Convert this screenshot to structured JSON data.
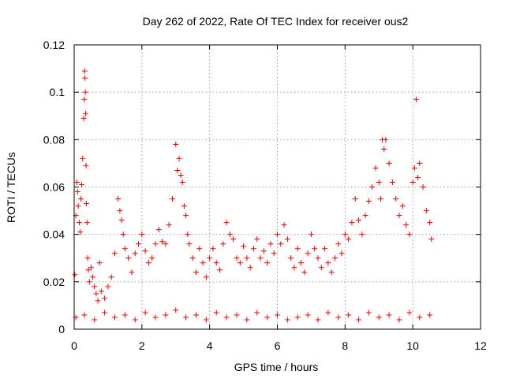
{
  "chart_data": {
    "type": "scatter",
    "title": "Day 262 of 2022, Rate Of TEC Index for receiver ous2",
    "xlabel": "GPS time / hours",
    "ylabel": "ROTI / TECUs",
    "xlim": [
      0,
      12
    ],
    "ylim": [
      0,
      0.12
    ],
    "xticks": [
      0,
      2,
      4,
      6,
      8,
      10,
      12
    ],
    "xtick_labels": [
      "0",
      "2",
      "4",
      "6",
      "8",
      "10",
      "12"
    ],
    "yticks": [
      0,
      0.02,
      0.04,
      0.06,
      0.08,
      0.1,
      0.12
    ],
    "ytick_labels": [
      "0",
      "0.02",
      "0.04",
      "0.06",
      "0.08",
      "0.1",
      "0.12"
    ],
    "grid": true,
    "marker": "+",
    "color": "#ff0000",
    "series": [
      {
        "x": [
          0.02,
          0.05,
          0.08,
          0.1,
          0.12,
          0.15,
          0.18,
          0.2,
          0.22,
          0.25,
          0.28,
          0.3,
          0.31,
          0.32,
          0.33,
          0.34,
          0.35,
          0.36,
          0.38,
          0.4,
          0.42,
          0.45,
          0.5,
          0.55,
          0.6,
          0.65,
          0.7,
          0.75,
          0.8,
          0.9,
          1.0,
          1.1,
          1.2,
          1.3,
          1.35,
          1.4,
          1.45,
          1.5,
          1.6,
          1.7,
          1.8,
          1.9,
          2.0,
          2.1,
          2.2,
          2.3,
          2.4,
          2.5,
          2.6,
          2.7,
          2.8,
          2.9,
          3.0,
          3.05,
          3.1,
          3.15,
          3.2,
          3.25,
          3.3,
          3.35,
          3.4,
          3.5,
          3.6,
          3.7,
          3.8,
          3.9,
          4.0,
          4.1,
          4.2,
          4.3,
          4.4,
          4.5,
          4.6,
          4.7,
          4.8,
          4.9,
          5.0,
          5.1,
          5.2,
          5.3,
          5.4,
          5.5,
          5.6,
          5.7,
          5.8,
          5.9,
          6.0,
          6.1,
          6.2,
          6.3,
          6.4,
          6.5,
          6.6,
          6.7,
          6.8,
          6.9,
          7.0,
          7.1,
          7.2,
          7.3,
          7.4,
          7.5,
          7.6,
          7.7,
          7.8,
          7.9,
          8.0,
          8.1,
          8.2,
          8.3,
          8.4,
          8.5,
          8.6,
          8.7,
          8.8,
          8.9,
          9.0,
          9.05,
          9.1,
          9.15,
          9.2,
          9.3,
          9.4,
          9.5,
          9.6,
          9.7,
          9.8,
          9.9,
          10.0,
          10.05,
          10.1,
          10.15,
          10.2,
          10.3,
          10.4,
          10.5,
          10.55
        ],
        "y": [
          0.023,
          0.048,
          0.062,
          0.058,
          0.052,
          0.045,
          0.041,
          0.055,
          0.061,
          0.072,
          0.089,
          0.097,
          0.109,
          0.106,
          0.1,
          0.091,
          0.069,
          0.053,
          0.045,
          0.03,
          0.025,
          0.02,
          0.026,
          0.022,
          0.018,
          0.015,
          0.012,
          0.028,
          0.016,
          0.013,
          0.018,
          0.022,
          0.032,
          0.055,
          0.05,
          0.046,
          0.04,
          0.034,
          0.03,
          0.024,
          0.032,
          0.036,
          0.04,
          0.033,
          0.028,
          0.03,
          0.036,
          0.042,
          0.037,
          0.036,
          0.044,
          0.055,
          0.078,
          0.067,
          0.072,
          0.065,
          0.062,
          0.052,
          0.048,
          0.04,
          0.036,
          0.03,
          0.024,
          0.034,
          0.028,
          0.022,
          0.03,
          0.034,
          0.028,
          0.025,
          0.036,
          0.045,
          0.04,
          0.038,
          0.03,
          0.028,
          0.035,
          0.03,
          0.026,
          0.034,
          0.038,
          0.03,
          0.033,
          0.028,
          0.036,
          0.032,
          0.04,
          0.036,
          0.044,
          0.038,
          0.03,
          0.026,
          0.034,
          0.028,
          0.024,
          0.032,
          0.04,
          0.034,
          0.03,
          0.026,
          0.034,
          0.028,
          0.024,
          0.03,
          0.036,
          0.032,
          0.04,
          0.038,
          0.045,
          0.055,
          0.046,
          0.04,
          0.048,
          0.054,
          0.06,
          0.068,
          0.062,
          0.055,
          0.08,
          0.076,
          0.08,
          0.07,
          0.062,
          0.055,
          0.048,
          0.052,
          0.044,
          0.04,
          0.062,
          0.068,
          0.097,
          0.064,
          0.07,
          0.06,
          0.05,
          0.045,
          0.038
        ]
      },
      {
        "name": "",
        "x": [
          0.05,
          0.3,
          0.6,
          0.9,
          1.2,
          1.5,
          1.8,
          2.1,
          2.4,
          2.7,
          3.0,
          3.3,
          3.6,
          3.9,
          4.2,
          4.5,
          4.8,
          5.1,
          5.4,
          5.7,
          6.0,
          6.3,
          6.6,
          6.9,
          7.2,
          7.5,
          7.8,
          8.1,
          8.4,
          8.7,
          9.0,
          9.3,
          9.6,
          9.9,
          10.2,
          10.5
        ],
        "y": [
          0.005,
          0.006,
          0.004,
          0.007,
          0.005,
          0.006,
          0.004,
          0.007,
          0.005,
          0.006,
          0.008,
          0.005,
          0.006,
          0.004,
          0.007,
          0.005,
          0.006,
          0.004,
          0.007,
          0.005,
          0.006,
          0.004,
          0.005,
          0.006,
          0.004,
          0.007,
          0.005,
          0.006,
          0.004,
          0.007,
          0.005,
          0.006,
          0.004,
          0.007,
          0.005,
          0.006
        ]
      }
    ]
  }
}
